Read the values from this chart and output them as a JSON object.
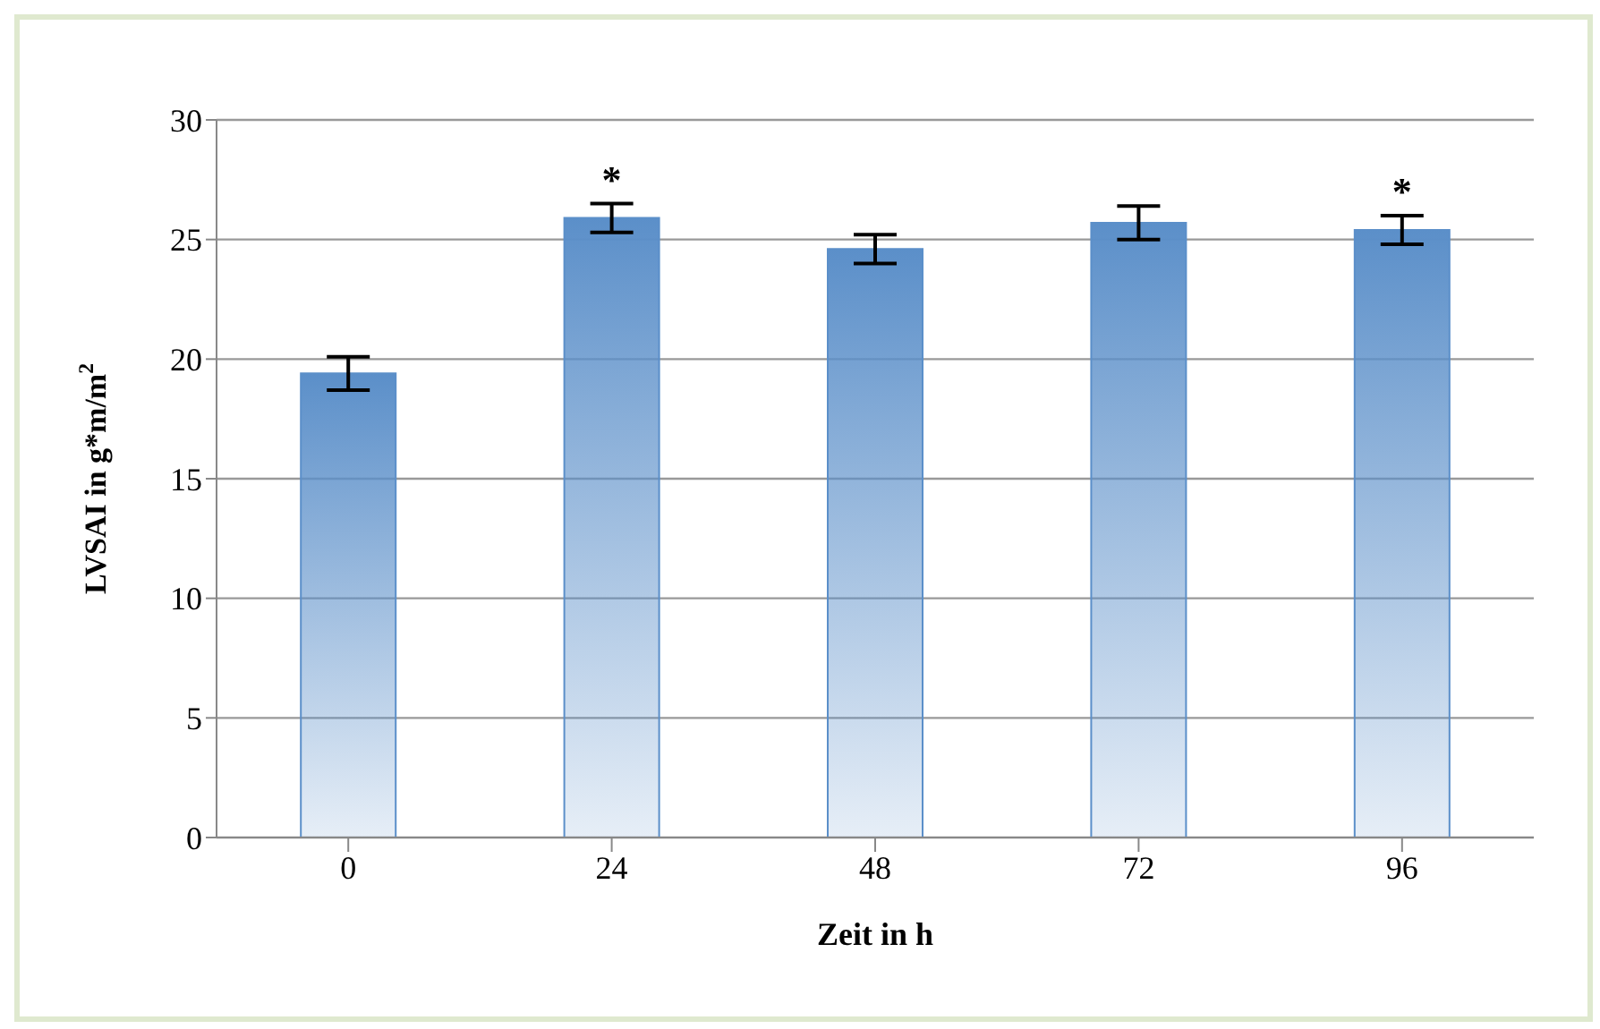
{
  "chart_data": {
    "type": "bar",
    "ylabel": "LVSAI in g*m/m$^{2}$",
    "xlabel": "Zeit in h",
    "categories": [
      "0",
      "24",
      "48",
      "72",
      "96"
    ],
    "values": [
      19.4,
      25.9,
      24.6,
      25.7,
      25.4
    ],
    "errors": [
      0.7,
      0.6,
      0.6,
      0.7,
      0.6
    ],
    "color": "#5b8fc9",
    "ylim": [
      0,
      30
    ],
    "yticks": [
      0,
      5,
      10,
      15,
      20,
      25,
      30
    ],
    "grid": "y",
    "annotations": [
      {
        "text": "*",
        "x": "24",
        "y": 25.9
      },
      {
        "text": "*",
        "x": "96",
        "y": 25.4
      }
    ]
  }
}
